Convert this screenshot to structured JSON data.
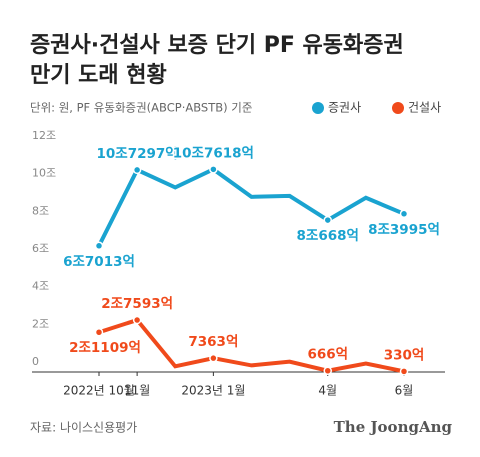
{
  "chart_data": {
    "type": "line",
    "title": [
      "증권사·건설사 보증 단기 PF 유동화증권",
      "만기 도래 현황"
    ],
    "subtitle": "단위: 원, PF 유동화증권(ABCP·ABSTB) 기준",
    "categories": [
      "2022년 10월",
      "11월",
      null,
      "2023년 1월",
      null,
      null,
      "4월",
      null,
      "6월"
    ],
    "series": [
      {
        "name": "증권사",
        "color": "#1aa3d0",
        "values": [
          6.7013,
          10.7297,
          9.8,
          10.7618,
          9.3,
          9.35,
          8.0668,
          9.25,
          8.3995
        ],
        "value_labels": [
          "6조7013억",
          "10조7297억",
          null,
          "10조7618억",
          null,
          null,
          "8조668억",
          null,
          "8조3995억"
        ]
      },
      {
        "name": "건설사",
        "color": "#f04a1b",
        "values": [
          2.1109,
          2.7593,
          0.3,
          0.7363,
          0.35,
          0.55,
          0.0666,
          0.45,
          0.033
        ],
        "value_labels": [
          "2조1109억",
          "2조7593억",
          null,
          "7363억",
          null,
          null,
          "666억",
          null,
          "330억"
        ]
      }
    ],
    "ylim": [
      0,
      12
    ],
    "yticks": [
      0,
      {
        "value": 2,
        "label": "2조"
      },
      {
        "value": 4,
        "label": "4조"
      },
      {
        "value": 6,
        "label": "6조"
      },
      {
        "value": 8,
        "label": "8조"
      },
      {
        "value": 10,
        "label": "10조"
      },
      {
        "value": 12,
        "label": "12조"
      }
    ],
    "source": "자료: 나이스신용평가",
    "brand": "The JoongAng"
  }
}
